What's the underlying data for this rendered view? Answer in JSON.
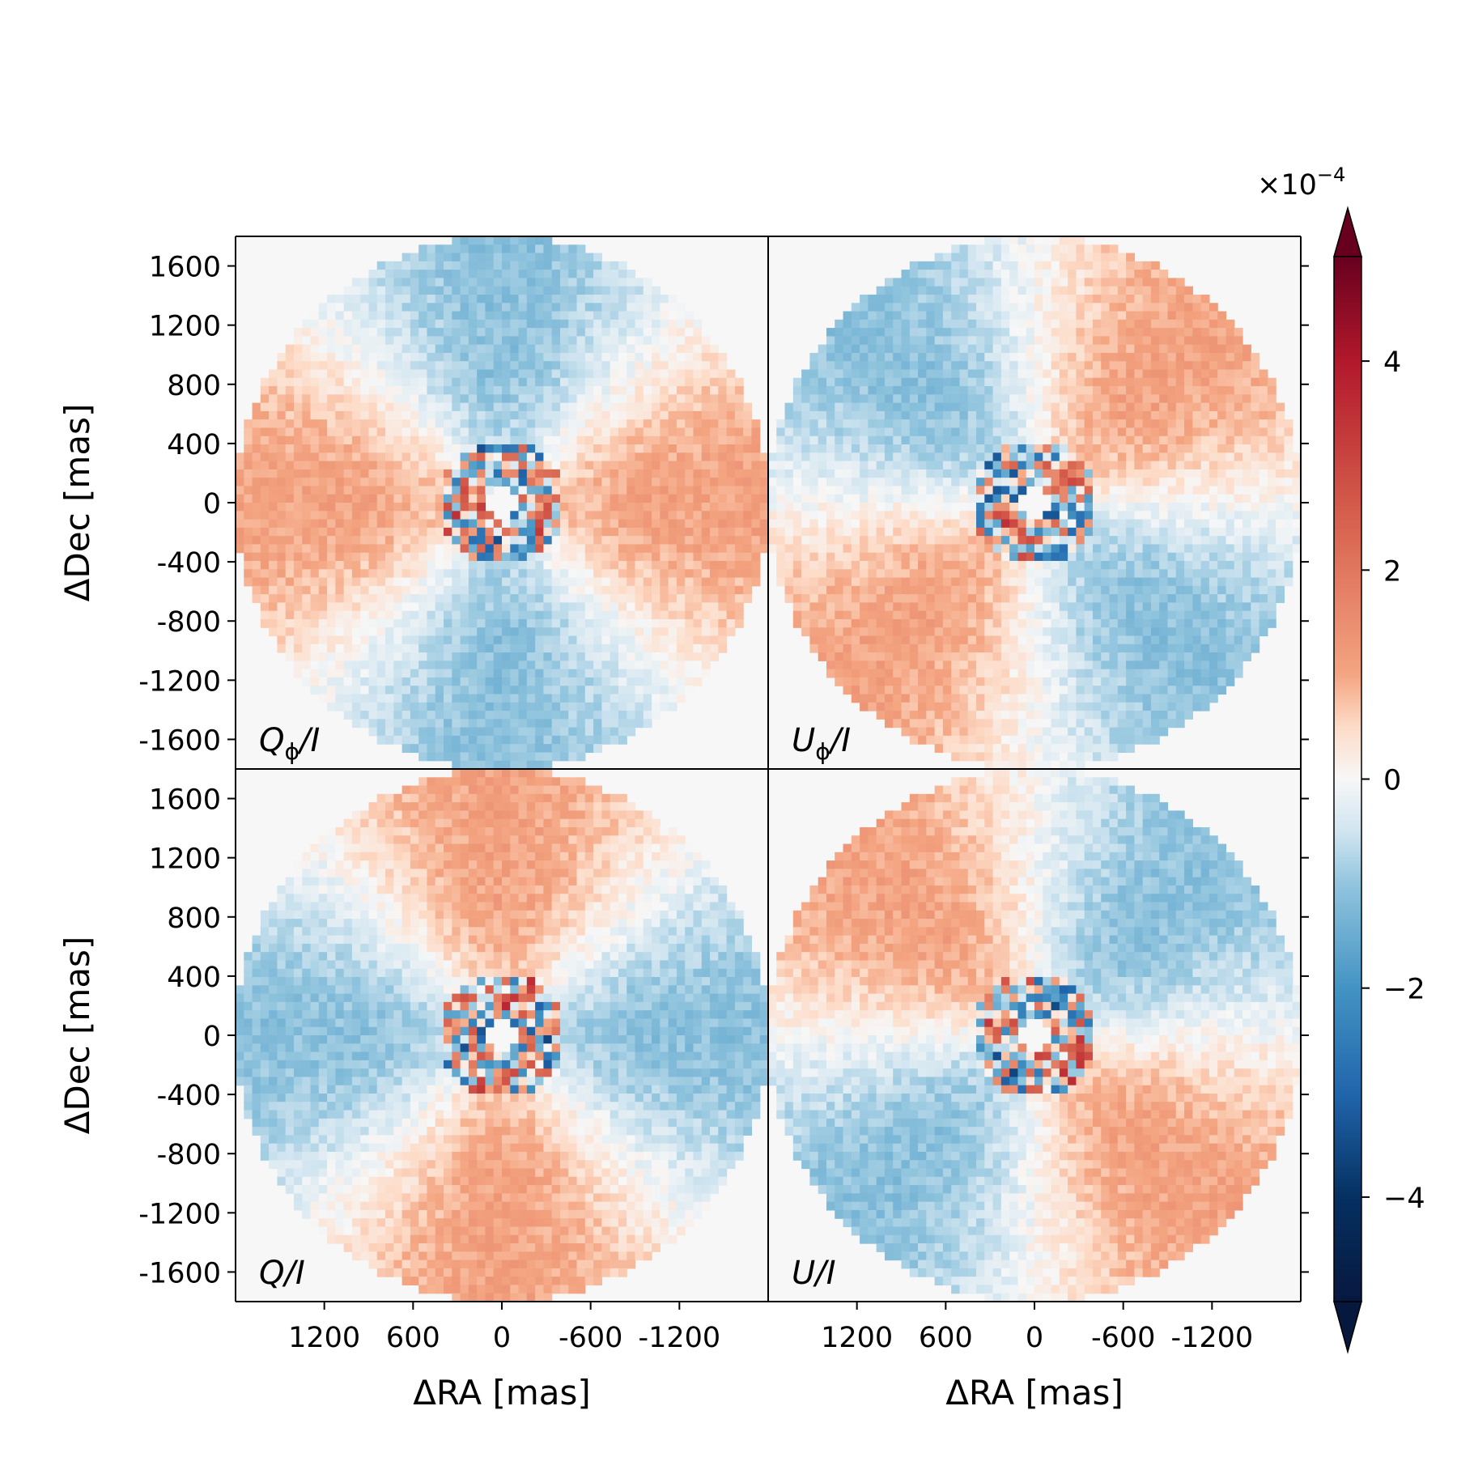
{
  "chart_data": {
    "type": "heatmap",
    "xlabel": "ΔRA [mas]",
    "ylabel": "ΔDec [mas]",
    "xlim": [
      1800,
      -1800
    ],
    "ylim": [
      -1800,
      1800
    ],
    "x_ticks": [
      1200,
      600,
      0,
      -600,
      -1200
    ],
    "x_tick_labels": [
      "1200",
      "600",
      "0",
      "-600",
      "-1200"
    ],
    "y_ticks": [
      1600,
      1200,
      800,
      400,
      0,
      -400,
      -800,
      -1200,
      -1600
    ],
    "y_tick_labels": [
      "1600",
      "1200",
      "800",
      "400",
      "0",
      "-400",
      "-800",
      "-1200",
      "-1600"
    ],
    "field_radius_mas": 1800,
    "inner_mask_radius_mas": 100,
    "colormap": "RdBu_r (blue-white-red diverging)",
    "colorbar": {
      "min": -5,
      "max": 5,
      "ticks": [
        4,
        2,
        0,
        -2,
        -4
      ],
      "tick_labels": [
        "4",
        "2",
        "0",
        "−2",
        "−4"
      ],
      "multiplier": "×10",
      "multiplier_exponent": "−4",
      "extend": "both"
    },
    "panels": [
      {
        "name": "Qphi",
        "label_main": "Q",
        "label_sub": "ϕ",
        "label_tail": "/I",
        "pattern": "quadrupole",
        "phase_deg": 0,
        "amplitude": 1.1
      },
      {
        "name": "Uphi",
        "label_main": "U",
        "label_sub": "ϕ",
        "label_tail": "/I",
        "pattern": "quadrupole",
        "phase_deg": 45,
        "amplitude": 1.1
      },
      {
        "name": "Q",
        "label_main": "Q",
        "label_sub": "",
        "label_tail": "/I",
        "pattern": "quadrupole",
        "phase_deg": 90,
        "amplitude": 1.1
      },
      {
        "name": "U",
        "label_main": "U",
        "label_sub": "",
        "label_tail": "/I",
        "pattern": "quadrupole",
        "phase_deg": 135,
        "amplitude": 1.1
      }
    ]
  }
}
